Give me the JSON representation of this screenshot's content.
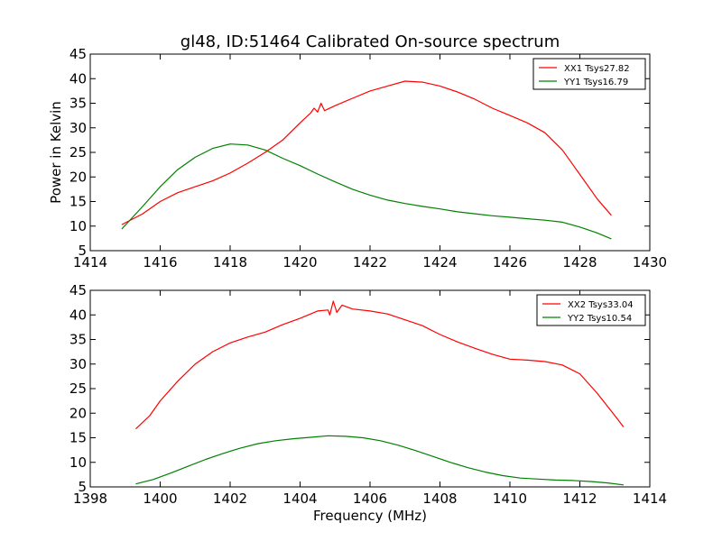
{
  "chart_data": [
    {
      "type": "line",
      "title": "gl48, ID:51464 Calibrated On-source spectrum",
      "xlabel": "",
      "ylabel": "Power in Kelvin",
      "xlim": [
        1414,
        1430
      ],
      "ylim": [
        5,
        45
      ],
      "xticks": [
        1414,
        1416,
        1418,
        1420,
        1422,
        1424,
        1426,
        1428,
        1430
      ],
      "yticks": [
        5,
        10,
        15,
        20,
        25,
        30,
        35,
        40,
        45
      ],
      "legend": "top-right",
      "grid": false,
      "series": [
        {
          "name": "XX1 Tsys27.82",
          "color": "#ff0000",
          "points": [
            [
              1414.9,
              10.3
            ],
            [
              1415.5,
              12.5
            ],
            [
              1416.0,
              15.0
            ],
            [
              1416.5,
              16.8
            ],
            [
              1417.0,
              18.0
            ],
            [
              1417.5,
              19.2
            ],
            [
              1418.0,
              20.8
            ],
            [
              1418.5,
              22.8
            ],
            [
              1419.0,
              25.0
            ],
            [
              1419.5,
              27.5
            ],
            [
              1420.0,
              31.0
            ],
            [
              1420.3,
              33.0
            ],
            [
              1420.4,
              34.0
            ],
            [
              1420.5,
              33.2
            ],
            [
              1420.6,
              35.0
            ],
            [
              1420.7,
              33.5
            ],
            [
              1421.0,
              34.5
            ],
            [
              1421.5,
              36.0
            ],
            [
              1422.0,
              37.5
            ],
            [
              1422.5,
              38.5
            ],
            [
              1423.0,
              39.5
            ],
            [
              1423.5,
              39.3
            ],
            [
              1424.0,
              38.5
            ],
            [
              1424.5,
              37.3
            ],
            [
              1425.0,
              35.8
            ],
            [
              1425.5,
              34.0
            ],
            [
              1426.0,
              32.5
            ],
            [
              1426.5,
              31.0
            ],
            [
              1427.0,
              29.0
            ],
            [
              1427.5,
              25.5
            ],
            [
              1428.0,
              20.5
            ],
            [
              1428.5,
              15.5
            ],
            [
              1428.9,
              12.2
            ]
          ]
        },
        {
          "name": "YY1 Tsys16.79",
          "color": "#008000",
          "points": [
            [
              1414.9,
              9.4
            ],
            [
              1415.5,
              14.0
            ],
            [
              1416.0,
              18.0
            ],
            [
              1416.5,
              21.5
            ],
            [
              1417.0,
              24.0
            ],
            [
              1417.5,
              25.8
            ],
            [
              1418.0,
              26.7
            ],
            [
              1418.5,
              26.5
            ],
            [
              1419.0,
              25.5
            ],
            [
              1419.5,
              23.8
            ],
            [
              1420.0,
              22.3
            ],
            [
              1420.5,
              20.6
            ],
            [
              1421.0,
              19.0
            ],
            [
              1421.5,
              17.5
            ],
            [
              1422.0,
              16.3
            ],
            [
              1422.5,
              15.3
            ],
            [
              1423.0,
              14.6
            ],
            [
              1423.5,
              14.0
            ],
            [
              1424.0,
              13.5
            ],
            [
              1424.5,
              12.9
            ],
            [
              1425.0,
              12.5
            ],
            [
              1425.5,
              12.1
            ],
            [
              1426.0,
              11.8
            ],
            [
              1426.5,
              11.5
            ],
            [
              1427.0,
              11.2
            ],
            [
              1427.5,
              10.8
            ],
            [
              1428.0,
              9.8
            ],
            [
              1428.5,
              8.6
            ],
            [
              1428.9,
              7.4
            ]
          ]
        }
      ]
    },
    {
      "type": "line",
      "title": "",
      "xlabel": "Frequency (MHz)",
      "ylabel": "",
      "xlim": [
        1398,
        1414
      ],
      "ylim": [
        5,
        45
      ],
      "xticks": [
        1398,
        1400,
        1402,
        1404,
        1406,
        1408,
        1410,
        1412,
        1414
      ],
      "yticks": [
        5,
        10,
        15,
        20,
        25,
        30,
        35,
        40,
        45
      ],
      "legend": "top-right",
      "grid": false,
      "series": [
        {
          "name": "XX2 Tsys33.04",
          "color": "#ff0000",
          "points": [
            [
              1399.3,
              16.8
            ],
            [
              1399.7,
              19.5
            ],
            [
              1400.0,
              22.5
            ],
            [
              1400.5,
              26.5
            ],
            [
              1401.0,
              30.0
            ],
            [
              1401.5,
              32.5
            ],
            [
              1402.0,
              34.3
            ],
            [
              1402.5,
              35.5
            ],
            [
              1403.0,
              36.5
            ],
            [
              1403.5,
              38.0
            ],
            [
              1404.0,
              39.3
            ],
            [
              1404.5,
              40.8
            ],
            [
              1404.8,
              41.0
            ],
            [
              1404.85,
              40.0
            ],
            [
              1404.95,
              42.8
            ],
            [
              1405.05,
              40.5
            ],
            [
              1405.2,
              42.0
            ],
            [
              1405.5,
              41.2
            ],
            [
              1406.0,
              40.8
            ],
            [
              1406.5,
              40.2
            ],
            [
              1407.0,
              39.0
            ],
            [
              1407.5,
              37.8
            ],
            [
              1408.0,
              36.0
            ],
            [
              1408.5,
              34.5
            ],
            [
              1409.0,
              33.2
            ],
            [
              1409.5,
              32.0
            ],
            [
              1410.0,
              31.0
            ],
            [
              1410.5,
              30.8
            ],
            [
              1411.0,
              30.5
            ],
            [
              1411.5,
              29.8
            ],
            [
              1412.0,
              28.0
            ],
            [
              1412.5,
              24.0
            ],
            [
              1413.0,
              19.5
            ],
            [
              1413.25,
              17.2
            ]
          ]
        },
        {
          "name": "YY2 Tsys10.54",
          "color": "#008000",
          "points": [
            [
              1399.3,
              5.6
            ],
            [
              1399.8,
              6.5
            ],
            [
              1400.3,
              7.8
            ],
            [
              1400.8,
              9.2
            ],
            [
              1401.3,
              10.6
            ],
            [
              1401.8,
              11.8
            ],
            [
              1402.3,
              12.9
            ],
            [
              1402.8,
              13.8
            ],
            [
              1403.3,
              14.4
            ],
            [
              1403.8,
              14.8
            ],
            [
              1404.3,
              15.1
            ],
            [
              1404.8,
              15.4
            ],
            [
              1405.3,
              15.3
            ],
            [
              1405.8,
              15.0
            ],
            [
              1406.3,
              14.4
            ],
            [
              1406.8,
              13.5
            ],
            [
              1407.3,
              12.4
            ],
            [
              1407.8,
              11.2
            ],
            [
              1408.3,
              10.0
            ],
            [
              1408.8,
              8.9
            ],
            [
              1409.3,
              8.0
            ],
            [
              1409.8,
              7.3
            ],
            [
              1410.3,
              6.8
            ],
            [
              1410.8,
              6.6
            ],
            [
              1411.3,
              6.4
            ],
            [
              1411.8,
              6.3
            ],
            [
              1412.3,
              6.1
            ],
            [
              1412.8,
              5.8
            ],
            [
              1413.25,
              5.4
            ]
          ]
        }
      ]
    }
  ]
}
